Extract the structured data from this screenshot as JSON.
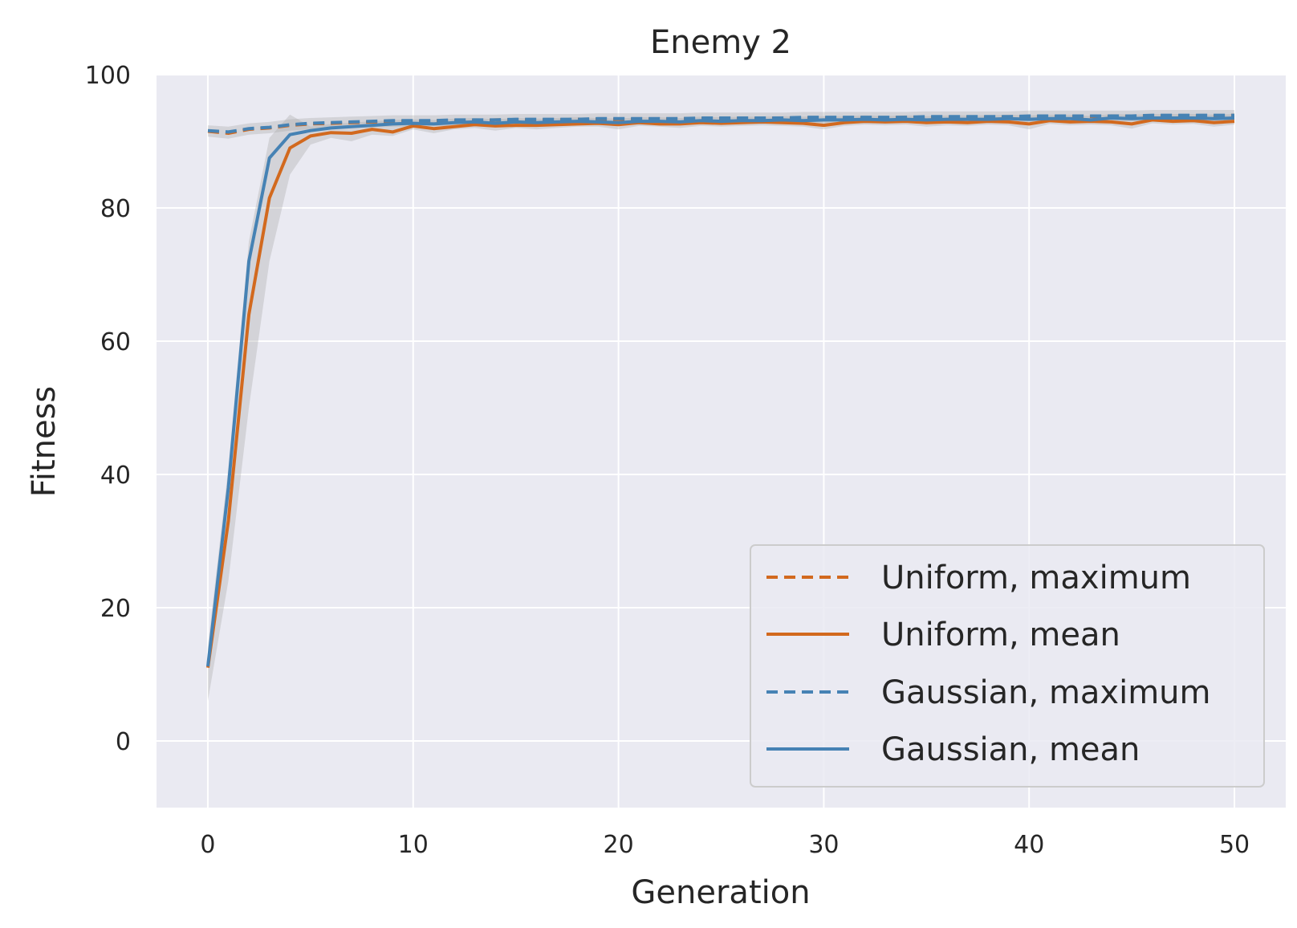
{
  "chart_data": {
    "type": "line",
    "title": "Enemy 2",
    "xlabel": "Generation",
    "ylabel": "Fitness",
    "xlim": [
      -2.5,
      52.5
    ],
    "ylim": [
      -10,
      100
    ],
    "xticks": [
      0,
      10,
      20,
      30,
      40,
      50
    ],
    "yticks": [
      0,
      20,
      40,
      60,
      80,
      100
    ],
    "grid": true,
    "legend_position": "lower-right",
    "colors": {
      "uniform": "#d2691e",
      "gaussian": "#4682b4",
      "band": "#a9a9a9",
      "background": "#eaeaf2",
      "grid": "#ffffff"
    },
    "series": [
      {
        "name": "Uniform, maximum",
        "style": "dashed",
        "color": "#d2691e",
        "x": [
          0,
          1,
          2,
          3,
          4,
          5,
          6,
          7,
          8,
          9,
          10,
          11,
          12,
          13,
          14,
          15,
          16,
          17,
          18,
          19,
          20,
          21,
          22,
          23,
          24,
          25,
          26,
          27,
          28,
          29,
          30,
          31,
          32,
          33,
          34,
          35,
          36,
          37,
          38,
          39,
          40,
          41,
          42,
          43,
          44,
          45,
          46,
          47,
          48,
          49,
          50
        ],
        "values": [
          91.5,
          91.2,
          91.8,
          92.0,
          92.4,
          92.6,
          92.7,
          92.8,
          92.9,
          93.0,
          93.0,
          93.1,
          93.1,
          93.1,
          93.2,
          93.2,
          93.2,
          93.2,
          93.3,
          93.3,
          93.3,
          93.3,
          93.3,
          93.4,
          93.4,
          93.4,
          93.4,
          93.4,
          93.5,
          93.5,
          93.5,
          93.5,
          93.5,
          93.5,
          93.6,
          93.6,
          93.6,
          93.6,
          93.6,
          93.6,
          93.7,
          93.7,
          93.7,
          93.7,
          93.7,
          93.8,
          93.8,
          93.8,
          93.8,
          93.8,
          93.9
        ]
      },
      {
        "name": "Uniform, mean",
        "style": "solid",
        "color": "#d2691e",
        "x": [
          0,
          1,
          2,
          3,
          4,
          5,
          6,
          7,
          8,
          9,
          10,
          11,
          12,
          13,
          14,
          15,
          16,
          17,
          18,
          19,
          20,
          21,
          22,
          23,
          24,
          25,
          26,
          27,
          28,
          29,
          30,
          31,
          32,
          33,
          34,
          35,
          36,
          37,
          38,
          39,
          40,
          41,
          42,
          43,
          44,
          45,
          46,
          47,
          48,
          49,
          50
        ],
        "values": [
          11.0,
          33.0,
          64.0,
          81.5,
          89.0,
          90.8,
          91.3,
          91.2,
          91.8,
          91.4,
          92.3,
          91.9,
          92.2,
          92.5,
          92.3,
          92.4,
          92.4,
          92.5,
          92.6,
          92.7,
          92.5,
          92.8,
          92.6,
          92.6,
          92.8,
          92.7,
          92.8,
          92.9,
          92.8,
          92.7,
          92.4,
          92.8,
          93.0,
          92.9,
          93.0,
          92.8,
          92.9,
          92.8,
          93.0,
          92.9,
          92.6,
          93.1,
          92.9,
          93.0,
          92.9,
          92.6,
          93.2,
          93.0,
          93.1,
          92.8,
          93.0
        ]
      },
      {
        "name": "Gaussian, maximum",
        "style": "dashed",
        "color": "#4682b4",
        "x": [
          0,
          1,
          2,
          3,
          4,
          5,
          6,
          7,
          8,
          9,
          10,
          11,
          12,
          13,
          14,
          15,
          16,
          17,
          18,
          19,
          20,
          21,
          22,
          23,
          24,
          25,
          26,
          27,
          28,
          29,
          30,
          31,
          32,
          33,
          34,
          35,
          36,
          37,
          38,
          39,
          40,
          41,
          42,
          43,
          44,
          45,
          46,
          47,
          48,
          49,
          50
        ],
        "values": [
          91.6,
          91.4,
          91.9,
          92.1,
          92.5,
          92.7,
          92.8,
          92.9,
          93.0,
          93.1,
          93.1,
          93.1,
          93.2,
          93.2,
          93.2,
          93.3,
          93.3,
          93.3,
          93.3,
          93.4,
          93.4,
          93.4,
          93.4,
          93.4,
          93.5,
          93.5,
          93.5,
          93.5,
          93.5,
          93.6,
          93.6,
          93.6,
          93.6,
          93.6,
          93.6,
          93.7,
          93.7,
          93.7,
          93.7,
          93.7,
          93.8,
          93.8,
          93.8,
          93.8,
          93.8,
          93.8,
          93.9,
          93.9,
          93.9,
          93.9,
          93.9
        ]
      },
      {
        "name": "Gaussian, mean",
        "style": "solid",
        "color": "#4682b4",
        "x": [
          0,
          1,
          2,
          3,
          4,
          5,
          6,
          7,
          8,
          9,
          10,
          11,
          12,
          13,
          14,
          15,
          16,
          17,
          18,
          19,
          20,
          21,
          22,
          23,
          24,
          25,
          26,
          27,
          28,
          29,
          30,
          31,
          32,
          33,
          34,
          35,
          36,
          37,
          38,
          39,
          40,
          41,
          42,
          43,
          44,
          45,
          46,
          47,
          48,
          49,
          50
        ],
        "values": [
          11.2,
          38.0,
          72.0,
          87.5,
          91.0,
          91.6,
          92.0,
          92.2,
          92.4,
          92.6,
          92.7,
          92.6,
          92.8,
          92.9,
          92.7,
          92.9,
          92.8,
          92.9,
          93.0,
          92.9,
          92.8,
          93.0,
          93.0,
          92.9,
          93.1,
          93.0,
          93.1,
          93.1,
          93.2,
          93.1,
          93.2,
          93.2,
          93.3,
          93.2,
          93.3,
          93.2,
          93.3,
          93.3,
          93.3,
          93.4,
          93.3,
          93.4,
          93.4,
          93.2,
          93.5,
          93.4,
          93.5,
          93.5,
          93.5,
          93.4,
          93.5
        ]
      }
    ],
    "bands": {
      "mean_spread": [
        6.0,
        24.0,
        50.0,
        72.0,
        85.0,
        89.5,
        90.5,
        90.0,
        91.0,
        90.8,
        91.8,
        91.2,
        91.8,
        92.0,
        91.6,
        92.0,
        91.8,
        92.0,
        92.2,
        92.2,
        91.8,
        92.3,
        92.2,
        92.0,
        92.3,
        92.2,
        92.3,
        92.4,
        92.3,
        92.2,
        91.8,
        92.3,
        92.5,
        92.4,
        92.5,
        92.2,
        92.4,
        92.3,
        92.5,
        92.4,
        91.8,
        92.6,
        92.4,
        92.5,
        92.4,
        91.9,
        92.7,
        92.5,
        92.6,
        92.2,
        92.5
      ]
    }
  }
}
